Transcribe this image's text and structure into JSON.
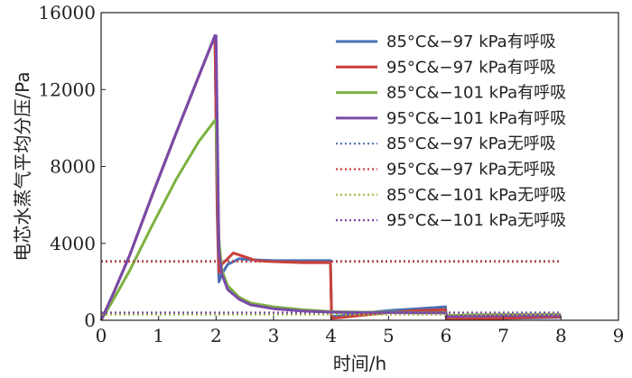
{
  "chart_data": {
    "type": "line",
    "title": "",
    "xlabel": "时间/h",
    "ylabel": "电芯水蒸气平均分压/Pa",
    "xlim": [
      0,
      9
    ],
    "ylim": [
      0,
      16000
    ],
    "xticks": [
      "0",
      "1",
      "2",
      "3",
      "4",
      "5",
      "6",
      "7",
      "8",
      "9"
    ],
    "yticks": [
      "0",
      "4000",
      "8000",
      "12000",
      "16000"
    ],
    "legend_position": "top-right",
    "series": [
      {
        "name": "85°C&−97 kPa有呼吸",
        "color": "#4a6fb5",
        "style": "solid",
        "x": [
          0,
          0.2,
          0.5,
          0.9,
          1.3,
          1.7,
          1.98,
          2.02,
          2.05,
          2.1,
          2.2,
          2.4,
          2.6,
          3.0,
          3.5,
          3.99,
          4.01,
          4.2,
          4.5,
          5.0,
          5.5,
          5.99,
          6.01,
          6.5,
          7.0,
          7.5,
          8.0
        ],
        "y": [
          0,
          1300,
          3400,
          6600,
          9700,
          12700,
          14800,
          5500,
          2000,
          2400,
          2900,
          3200,
          3150,
          3100,
          3100,
          3100,
          200,
          250,
          350,
          500,
          600,
          700,
          50,
          80,
          100,
          120,
          150
        ]
      },
      {
        "name": "95°C&−97 kPa有呼吸",
        "color": "#c9403a",
        "style": "solid",
        "x": [
          0,
          0.2,
          0.5,
          0.9,
          1.3,
          1.7,
          1.98,
          2.02,
          2.05,
          2.1,
          2.3,
          2.5,
          2.7,
          3.0,
          3.5,
          3.99,
          4.01,
          4.2,
          4.5,
          5.0,
          5.5,
          5.99,
          6.01,
          6.5,
          7.0,
          7.5,
          8.0
        ],
        "y": [
          0,
          1300,
          3400,
          6600,
          9700,
          12700,
          14800,
          6000,
          2500,
          2900,
          3500,
          3300,
          3100,
          3050,
          3000,
          3000,
          100,
          150,
          250,
          400,
          500,
          550,
          50,
          80,
          100,
          150,
          180
        ]
      },
      {
        "name": "85°C&−101 kPa有呼吸",
        "color": "#7db240",
        "style": "solid",
        "x": [
          0,
          0.2,
          0.5,
          0.9,
          1.3,
          1.7,
          1.98,
          2.0,
          2.05,
          2.1,
          2.2,
          2.4,
          2.6,
          3.0,
          3.5,
          4.0,
          4.5,
          5.0,
          5.5,
          6.0,
          6.01,
          6.5,
          7.0,
          7.5,
          8.0
        ],
        "y": [
          0,
          1000,
          2600,
          5000,
          7300,
          9300,
          10400,
          10400,
          4200,
          2600,
          1800,
          1200,
          900,
          700,
          550,
          450,
          420,
          420,
          400,
          400,
          250,
          280,
          300,
          300,
          300
        ]
      },
      {
        "name": "95°C&−101 kPa有呼吸",
        "color": "#7a4aa8",
        "style": "solid",
        "x": [
          0,
          0.2,
          0.5,
          0.9,
          1.3,
          1.7,
          1.98,
          2.0,
          2.05,
          2.1,
          2.2,
          2.4,
          2.6,
          3.0,
          3.5,
          4.0,
          4.5,
          5.0,
          5.5,
          6.0,
          6.01,
          6.5,
          7.0,
          7.5,
          8.0
        ],
        "y": [
          0,
          1300,
          3400,
          6600,
          9700,
          12700,
          14800,
          14800,
          3600,
          2400,
          1600,
          1100,
          800,
          600,
          480,
          420,
          400,
          400,
          380,
          380,
          200,
          220,
          240,
          250,
          250
        ]
      },
      {
        "name": "85°C&−97 kPa无呼吸",
        "color": "#4a6fb5",
        "style": "dotted",
        "x": [
          0,
          8
        ],
        "y": [
          3080,
          3080
        ]
      },
      {
        "name": "95°C&−97 kPa无呼吸",
        "color": "#c9403a",
        "style": "dotted",
        "x": [
          0,
          8
        ],
        "y": [
          3050,
          3050
        ]
      },
      {
        "name": "85°C&−101 kPa无呼吸",
        "color": "#9cb83a",
        "style": "dotted",
        "x": [
          0,
          8
        ],
        "y": [
          300,
          300
        ]
      },
      {
        "name": "95°C&−101 kPa无呼吸",
        "color": "#7a4aa8",
        "style": "dotted",
        "x": [
          0,
          8
        ],
        "y": [
          400,
          400
        ]
      }
    ]
  }
}
